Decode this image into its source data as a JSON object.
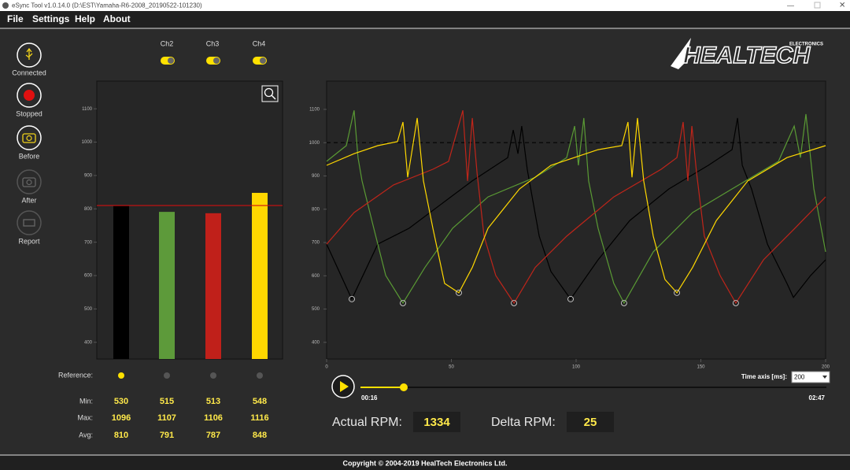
{
  "window": {
    "title": "eSync Tool v1.0.14.0 (D:\\EST\\Yamaha-R6-2008_20190522-101230)"
  },
  "menu": [
    "File",
    "Settings",
    "Help",
    "About"
  ],
  "sidebar": [
    "Connected",
    "Stopped",
    "Before",
    "After",
    "Report"
  ],
  "channels": [
    "Ch2",
    "Ch3",
    "Ch4"
  ],
  "logo": {
    "name": "HEALTECH",
    "tagline": "ELECTRONICS"
  },
  "chart_data": [
    {
      "type": "bar",
      "values": [
        810,
        791,
        787,
        848
      ],
      "colors": [
        "#000000",
        "#5d9a3a",
        "#c0201a",
        "#ffd700"
      ],
      "ylim": [
        350,
        1183
      ],
      "yticks": [
        400,
        500,
        600,
        700,
        800,
        900,
        1000,
        1100
      ],
      "reference_line": 810,
      "reference_color": "#d01010"
    },
    {
      "type": "line",
      "xlim": [
        0,
        200
      ],
      "xticks": [
        0,
        50,
        100,
        150,
        200
      ],
      "ylim": [
        350,
        1185
      ],
      "yticks": [
        400,
        500,
        600,
        700,
        800,
        900,
        1000,
        1100
      ],
      "reference_line": 1000,
      "reference_color": "#000000",
      "series": [
        {
          "color": "#000000",
          "x": [
            0,
            10.1,
            20.5,
            33.1,
            45.7,
            58.4,
            72.6,
            74.8,
            76.7,
            78.2,
            80.4,
            85.2,
            89.9,
            97.8,
            108.8,
            121.5,
            137.2,
            153,
            162.5,
            164.7,
            166.6,
            170.3,
            176.7,
            184.5,
            187.1,
            194,
            200
          ],
          "values": [
            695,
            530,
            695,
            743,
            814,
            885,
            955,
            1038,
            967,
            1050,
            920,
            719,
            613,
            530,
            648,
            766,
            861,
            932,
            979,
            1074,
            932,
            861,
            695,
            577,
            535,
            601,
            648
          ]
        },
        {
          "color": "#5a9a34",
          "x": [
            0,
            7.9,
            11,
            12.6,
            14.2,
            18.9,
            23.7,
            30.6,
            39.4,
            50.5,
            64.7,
            83.6,
            96.2,
            99.4,
            100.9,
            103.1,
            105,
            108.8,
            115.1,
            119.2,
            130.9,
            146.7,
            162.5,
            181.1,
            187.4,
            189.9,
            192.1,
            195.3,
            200
          ],
          "values": [
            944,
            991,
            1097,
            955,
            885,
            743,
            601,
            518,
            625,
            743,
            837,
            896,
            955,
            1050,
            932,
            1074,
            885,
            743,
            577,
            518,
            672,
            790,
            861,
            944,
            1050,
            955,
            1086,
            861,
            672
          ]
        },
        {
          "color": "#c0251a",
          "x": [
            0,
            11,
            26.8,
            42.6,
            48.9,
            54.6,
            56.5,
            58.4,
            60.3,
            63.1,
            67.8,
            75.1,
            83.6,
            96.2,
            115.1,
            134.1,
            140.4,
            142.9,
            144.8,
            146.4,
            148.3,
            151.4,
            157.7,
            164,
            175.1,
            187.7,
            200
          ],
          "values": [
            695,
            790,
            873,
            920,
            944,
            1097,
            885,
            1074,
            908,
            719,
            601,
            518,
            625,
            719,
            837,
            920,
            955,
            1062,
            885,
            1050,
            908,
            719,
            601,
            518,
            648,
            743,
            837
          ]
        },
        {
          "color": "#ffd800",
          "x": [
            0,
            11,
            20.5,
            28.4,
            30.6,
            32.5,
            33.8,
            36.3,
            38.8,
            42.6,
            47.3,
            53,
            58.4,
            64.7,
            77.3,
            89.9,
            108.8,
            118.3,
            120.8,
            122.4,
            124.6,
            127.1,
            130.9,
            135.6,
            140.4,
            146.7,
            156.2,
            168.8,
            184.5,
            200
          ],
          "values": [
            932,
            967,
            991,
            1003,
            1062,
            896,
            955,
            1074,
            885,
            743,
            577,
            549,
            625,
            743,
            861,
            932,
            979,
            991,
            1062,
            896,
            1074,
            885,
            719,
            589,
            549,
            625,
            766,
            885,
            955,
            991
          ]
        }
      ]
    }
  ],
  "stats": {
    "labels": {
      "reference": "Reference:",
      "min": "Min:",
      "max": "Max:",
      "avg": "Avg:"
    },
    "reference_selected": 0,
    "min": [
      530,
      515,
      513,
      548
    ],
    "max": [
      1096,
      1107,
      1106,
      1116
    ],
    "avg": [
      810,
      791,
      787,
      848
    ]
  },
  "player": {
    "elapsed": "00:16",
    "total": "02:47",
    "time_axis_label": "Time axis [ms]:",
    "time_axis_value": "200"
  },
  "readout": {
    "actual_label": "Actual RPM:",
    "actual_value": "1334",
    "delta_label": "Delta RPM:",
    "delta_value": "25"
  },
  "footer": "Copyright © 2004-2019 HealTech Electronics Ltd."
}
